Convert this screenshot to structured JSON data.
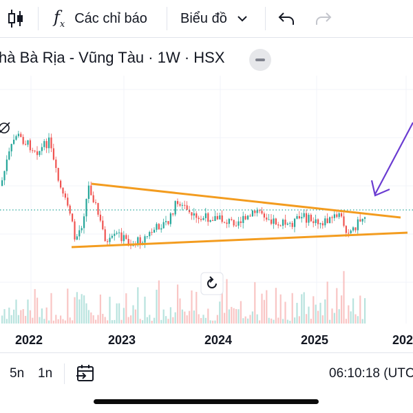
{
  "toolbar": {
    "indicators_label": "Các chỉ báo",
    "chart_type_label": "Biểu đồ",
    "icons": [
      "candles-icon",
      "fx-icon",
      "chevron-down-icon",
      "undo-icon",
      "redo-icon"
    ]
  },
  "symbol": {
    "title": "hà Bà Rịa - Vũng Tàu · 1W · HSX"
  },
  "chart_data": {
    "type": "candlestick",
    "x_tick_labels": [
      "2022",
      "2023",
      "2024",
      "2025",
      "202"
    ],
    "colors": {
      "up": "#26a69a",
      "down": "#ef5350",
      "trendline": "#f39c1f",
      "arrow": "#6a3bd1",
      "price_line": "#26a69a"
    },
    "grid": true,
    "annotation": "symmetrical triangle drawn with two trendlines, arrow pointing to breakout"
  },
  "bottom": {
    "range_5y": "5n",
    "range_1y": "1n",
    "time": "06:10:18 (UTC"
  }
}
